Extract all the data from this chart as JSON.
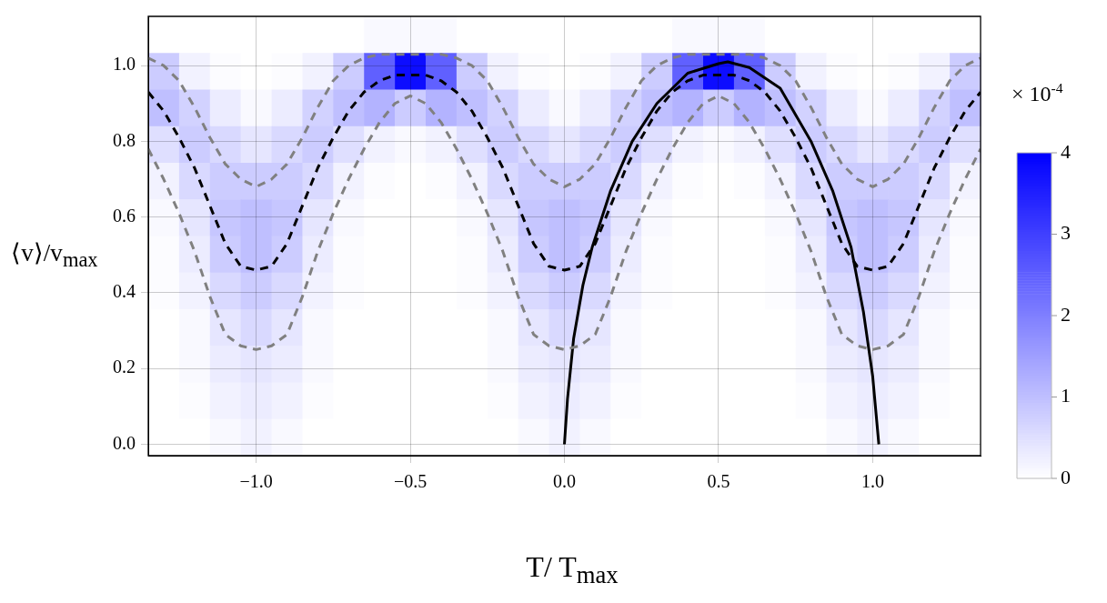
{
  "chart_data": [
    {
      "type": "heatmap",
      "clabel": "× 10$^{-4}$",
      "clim": [
        0,
        4
      ],
      "cticks": [
        0,
        1,
        2,
        3,
        4
      ],
      "color": "#0000ff",
      "categories": [
        null,
        null,
        null,
        null,
        null,
        null,
        null,
        null,
        null,
        null,
        null,
        null,
        null,
        null,
        null,
        null,
        null,
        null,
        null,
        null,
        null,
        null,
        null,
        null,
        null,
        null,
        null
      ],
      "y_categories": [
        null,
        null,
        null,
        null,
        null,
        null,
        null,
        null,
        null,
        null,
        null,
        null
      ],
      "cells": [
        [
          0,
          0,
          0,
          0,
          0,
          0,
          0,
          0.1,
          0.1,
          0.1,
          0,
          0,
          0,
          0,
          0,
          0,
          0,
          0.1,
          0.1,
          0.1,
          0,
          0,
          0,
          0,
          0,
          0,
          0
        ],
        [
          0.8,
          0.2,
          0.05,
          0,
          0.05,
          0.2,
          0.8,
          2.5,
          3.8,
          2.5,
          0.8,
          0.2,
          0.05,
          0,
          0.05,
          0.2,
          0.8,
          2.5,
          3.8,
          2.5,
          0.8,
          0.2,
          0.05,
          0,
          0.05,
          0.2,
          0.8
        ],
        [
          1,
          0.7,
          0.3,
          0.1,
          0.3,
          0.7,
          1,
          1.2,
          0.8,
          1.2,
          1,
          0.7,
          0.3,
          0.1,
          0.3,
          0.7,
          1,
          1.2,
          0.8,
          1.2,
          1,
          0.7,
          0.3,
          0.1,
          0.3,
          0.7,
          1
        ],
        [
          0.5,
          0.8,
          0.6,
          0.4,
          0.6,
          0.8,
          0.5,
          0.2,
          0.1,
          0.2,
          0.5,
          0.8,
          0.6,
          0.4,
          0.6,
          0.8,
          0.5,
          0.2,
          0.1,
          0.2,
          0.5,
          0.8,
          0.6,
          0.4,
          0.6,
          0.8,
          0.5
        ],
        [
          0.2,
          0.6,
          0.8,
          0.8,
          0.8,
          0.6,
          0.2,
          0.05,
          0,
          0.05,
          0.2,
          0.6,
          0.8,
          0.8,
          0.8,
          0.6,
          0.2,
          0.05,
          0,
          0.05,
          0.2,
          0.6,
          0.8,
          0.8,
          0.8,
          0.6,
          0.2
        ],
        [
          0.1,
          0.4,
          0.9,
          1,
          0.9,
          0.4,
          0.1,
          0,
          0,
          0,
          0.1,
          0.4,
          0.9,
          1,
          0.9,
          0.4,
          0.1,
          0,
          0,
          0,
          0.1,
          0.4,
          0.9,
          1,
          0.9,
          0.4,
          0.1
        ],
        [
          0.05,
          0.3,
          0.8,
          1,
          0.8,
          0.3,
          0.05,
          0,
          0,
          0,
          0.05,
          0.3,
          0.8,
          1,
          0.8,
          0.3,
          0.05,
          0,
          0,
          0,
          0.05,
          0.3,
          0.8,
          1,
          0.8,
          0.3,
          0.05
        ],
        [
          0.05,
          0.2,
          0.6,
          0.8,
          0.6,
          0.2,
          0.05,
          0,
          0,
          0,
          0.05,
          0.2,
          0.6,
          0.8,
          0.6,
          0.2,
          0.05,
          0,
          0,
          0,
          0.05,
          0.2,
          0.6,
          0.8,
          0.6,
          0.2,
          0.05
        ],
        [
          0,
          0.1,
          0.4,
          0.6,
          0.4,
          0.1,
          0,
          0,
          0,
          0,
          0,
          0.1,
          0.4,
          0.6,
          0.4,
          0.1,
          0,
          0,
          0,
          0,
          0,
          0.1,
          0.4,
          0.6,
          0.4,
          0.1,
          0
        ],
        [
          0,
          0.1,
          0.3,
          0.4,
          0.3,
          0.1,
          0,
          0,
          0,
          0,
          0,
          0.1,
          0.3,
          0.4,
          0.3,
          0.1,
          0,
          0,
          0,
          0,
          0,
          0.1,
          0.3,
          0.4,
          0.3,
          0.1,
          0
        ],
        [
          0,
          0.05,
          0.2,
          0.3,
          0.2,
          0.05,
          0,
          0,
          0,
          0,
          0,
          0.05,
          0.2,
          0.3,
          0.2,
          0.05,
          0,
          0,
          0,
          0,
          0,
          0.05,
          0.2,
          0.3,
          0.2,
          0.05,
          0
        ],
        [
          0,
          0,
          0.1,
          0.2,
          0.1,
          0,
          0,
          0,
          0,
          0,
          0,
          0,
          0.1,
          0.2,
          0.1,
          0,
          0,
          0,
          0,
          0,
          0,
          0,
          0.1,
          0.2,
          0.1,
          0,
          0
        ]
      ]
    },
    {
      "type": "line",
      "xlabel": "T/ T$_{max}$",
      "ylabel": "⟨v⟩/v$_{max}$",
      "xlim": [
        -1.35,
        1.35
      ],
      "ylim": [
        -0.03,
        1.13
      ],
      "xticks": [
        {
          "value": -1,
          "label": "−1.0"
        },
        {
          "value": -0.5,
          "label": "−0.5"
        },
        {
          "value": 0,
          "label": "0.0"
        },
        {
          "value": 0.5,
          "label": "0.5"
        },
        {
          "value": 1,
          "label": "1.0"
        }
      ],
      "yticks": [
        {
          "value": 0,
          "label": "0.0"
        },
        {
          "value": 0.2,
          "label": "0.2"
        },
        {
          "value": 0.4,
          "label": "0.4"
        },
        {
          "value": 0.6,
          "label": "0.6"
        },
        {
          "value": 0.8,
          "label": "0.8"
        },
        {
          "value": 1,
          "label": "1.0"
        }
      ],
      "grid": true,
      "legend": false,
      "marker": "none",
      "series": [
        {
          "color": "#808080",
          "line_style": "dashed",
          "x": [
            -1.35,
            -1.3,
            -1.25,
            -1.2,
            -1.15,
            -1.1,
            -1.05,
            -1.0,
            -0.95,
            -0.9,
            -0.85,
            -0.8,
            -0.75,
            -0.7,
            -0.65,
            -0.6,
            -0.55,
            -0.5,
            -0.45,
            -0.4,
            -0.35,
            -0.3,
            -0.25,
            -0.2,
            -0.15,
            -0.1,
            -0.05,
            0,
            0.05,
            0.1,
            0.15,
            0.2,
            0.25,
            0.3,
            0.35,
            0.4,
            0.45,
            0.5,
            0.55,
            0.6,
            0.65,
            0.7,
            0.75,
            0.8,
            0.85,
            0.9,
            0.95,
            1.0,
            1.05,
            1.1,
            1.15,
            1.2,
            1.25,
            1.3,
            1.35
          ],
          "values": [
            1.02,
            1.0,
            0.96,
            0.89,
            0.81,
            0.74,
            0.7,
            0.68,
            0.7,
            0.74,
            0.81,
            0.89,
            0.96,
            1.0,
            1.02,
            1.03,
            1.03,
            1.03,
            1.03,
            1.03,
            1.02,
            1.0,
            0.96,
            0.89,
            0.81,
            0.74,
            0.7,
            0.68,
            0.7,
            0.74,
            0.81,
            0.89,
            0.96,
            1.0,
            1.02,
            1.03,
            1.03,
            1.03,
            1.03,
            1.03,
            1.02,
            1.0,
            0.96,
            0.89,
            0.81,
            0.74,
            0.7,
            0.68,
            0.7,
            0.74,
            0.81,
            0.89,
            0.96,
            1.0,
            1.02
          ]
        },
        {
          "color": "#808080",
          "line_style": "dashed",
          "x": [
            -1.35,
            -1.3,
            -1.25,
            -1.2,
            -1.15,
            -1.1,
            -1.05,
            -1.0,
            -0.95,
            -0.9,
            -0.85,
            -0.8,
            -0.75,
            -0.7,
            -0.65,
            -0.6,
            -0.55,
            -0.5,
            -0.45,
            -0.4,
            -0.35,
            -0.3,
            -0.25,
            -0.2,
            -0.15,
            -0.1,
            -0.05,
            0,
            0.05,
            0.1,
            0.15,
            0.2,
            0.25,
            0.3,
            0.35,
            0.4,
            0.45,
            0.5,
            0.55,
            0.6,
            0.65,
            0.7,
            0.75,
            0.8,
            0.85,
            0.9,
            0.95,
            1.0,
            1.05,
            1.1,
            1.15,
            1.2,
            1.25,
            1.3,
            1.35
          ],
          "values": [
            0.78,
            0.7,
            0.61,
            0.51,
            0.39,
            0.29,
            0.26,
            0.25,
            0.26,
            0.29,
            0.39,
            0.51,
            0.61,
            0.7,
            0.78,
            0.85,
            0.9,
            0.92,
            0.9,
            0.85,
            0.78,
            0.7,
            0.61,
            0.51,
            0.39,
            0.29,
            0.26,
            0.25,
            0.26,
            0.29,
            0.39,
            0.51,
            0.61,
            0.7,
            0.78,
            0.85,
            0.9,
            0.92,
            0.9,
            0.85,
            0.78,
            0.7,
            0.61,
            0.51,
            0.39,
            0.29,
            0.26,
            0.25,
            0.26,
            0.29,
            0.39,
            0.51,
            0.61,
            0.7,
            0.78
          ]
        },
        {
          "color": "#000000",
          "line_style": "dashed",
          "x": [
            -1.35,
            -1.3,
            -1.25,
            -1.2,
            -1.15,
            -1.1,
            -1.05,
            -1.0,
            -0.95,
            -0.9,
            -0.85,
            -0.8,
            -0.75,
            -0.7,
            -0.65,
            -0.6,
            -0.55,
            -0.5,
            -0.45,
            -0.4,
            -0.35,
            -0.3,
            -0.25,
            -0.2,
            -0.15,
            -0.1,
            -0.05,
            0,
            0.05,
            0.1,
            0.15,
            0.2,
            0.25,
            0.3,
            0.35,
            0.4,
            0.45,
            0.5,
            0.55,
            0.6,
            0.65,
            0.7,
            0.75,
            0.8,
            0.85,
            0.9,
            0.95,
            1.0,
            1.05,
            1.1,
            1.15,
            1.2,
            1.25,
            1.3,
            1.35
          ],
          "values": [
            0.93,
            0.88,
            0.81,
            0.73,
            0.63,
            0.53,
            0.47,
            0.46,
            0.47,
            0.53,
            0.63,
            0.73,
            0.81,
            0.88,
            0.93,
            0.96,
            0.975,
            0.975,
            0.975,
            0.96,
            0.93,
            0.88,
            0.81,
            0.73,
            0.63,
            0.53,
            0.47,
            0.46,
            0.47,
            0.53,
            0.63,
            0.73,
            0.81,
            0.88,
            0.93,
            0.96,
            0.975,
            0.975,
            0.975,
            0.96,
            0.93,
            0.88,
            0.81,
            0.73,
            0.63,
            0.53,
            0.47,
            0.46,
            0.47,
            0.53,
            0.63,
            0.73,
            0.81,
            0.88,
            0.93
          ]
        },
        {
          "color": "#000000",
          "line_style": "solid",
          "x": [
            0,
            0.01,
            0.03,
            0.06,
            0.09,
            0.15,
            0.22,
            0.3,
            0.4,
            0.5,
            0.53,
            0.6,
            0.7,
            0.8,
            0.87,
            0.93,
            0.97,
            1.0,
            1.02
          ],
          "values": [
            0,
            0.12,
            0.28,
            0.42,
            0.52,
            0.67,
            0.8,
            0.9,
            0.98,
            1.005,
            1.01,
            0.995,
            0.94,
            0.8,
            0.67,
            0.52,
            0.35,
            0.18,
            0
          ]
        }
      ]
    }
  ]
}
